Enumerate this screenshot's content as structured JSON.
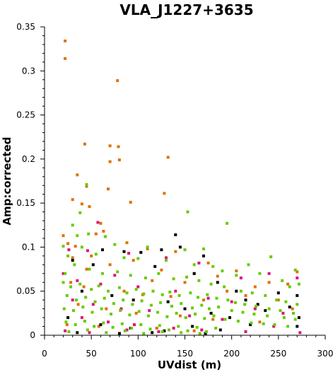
{
  "chart_data": {
    "type": "scatter",
    "title": "VLA_J1227+3635",
    "xlabel": "UVdist (m)",
    "ylabel": "Amp:corrected",
    "xlim": [
      0,
      300
    ],
    "ylim": [
      0,
      0.35
    ],
    "xticks": [
      0,
      50,
      100,
      150,
      200,
      250,
      300
    ],
    "yticks": [
      0,
      0.05,
      0.1,
      0.15,
      0.2,
      0.25,
      0.3,
      0.35
    ],
    "xtick_labels": [
      "0",
      "50",
      "100",
      "150",
      "200",
      "250",
      "300"
    ],
    "ytick_labels": [
      "0",
      "0.05",
      "0.1",
      "0.15",
      "0.2",
      "0.25",
      "0.3",
      "0.35"
    ],
    "grid": false,
    "legend": "none",
    "series": [
      {
        "color": "#e07000",
        "points": [
          [
            22,
            0.334
          ],
          [
            22,
            0.314
          ],
          [
            78,
            0.289
          ],
          [
            43,
            0.217
          ],
          [
            70,
            0.215
          ],
          [
            79,
            0.214
          ],
          [
            70,
            0.197
          ],
          [
            80,
            0.199
          ],
          [
            132,
            0.202
          ],
          [
            35,
            0.182
          ],
          [
            45,
            0.169
          ],
          [
            68,
            0.166
          ],
          [
            128,
            0.161
          ],
          [
            30,
            0.154
          ],
          [
            40,
            0.149
          ],
          [
            92,
            0.151
          ],
          [
            48,
            0.146
          ],
          [
            60,
            0.127
          ],
          [
            20,
            0.113
          ],
          [
            25,
            0.104
          ],
          [
            33,
            0.101
          ],
          [
            55,
            0.115
          ],
          [
            63,
            0.118
          ],
          [
            88,
            0.105
          ],
          [
            110,
            0.098
          ],
          [
            140,
            0.095
          ],
          [
            175,
            0.082
          ],
          [
            240,
            0.06
          ],
          [
            270,
            0.072
          ],
          [
            205,
            0.073
          ],
          [
            30,
            0.088
          ],
          [
            50,
            0.09
          ],
          [
            95,
            0.085
          ],
          [
            125,
            0.074
          ],
          [
            160,
            0.07
          ],
          [
            185,
            0.067
          ],
          [
            225,
            0.055
          ],
          [
            260,
            0.058
          ],
          [
            45,
            0.075
          ],
          [
            70,
            0.08
          ],
          [
            115,
            0.062
          ],
          [
            150,
            0.06
          ],
          [
            195,
            0.05
          ],
          [
            215,
            0.045
          ],
          [
            250,
            0.04
          ],
          [
            28,
            0.06
          ],
          [
            42,
            0.055
          ],
          [
            85,
            0.05
          ],
          [
            105,
            0.046
          ],
          [
            135,
            0.044
          ],
          [
            170,
            0.04
          ],
          [
            265,
            0.03
          ],
          [
            36,
            0.035
          ],
          [
            66,
            0.03
          ],
          [
            98,
            0.025
          ],
          [
            145,
            0.022
          ],
          [
            180,
            0.018
          ],
          [
            230,
            0.015
          ],
          [
            24,
            0.012
          ],
          [
            58,
            0.01
          ],
          [
            120,
            0.008
          ],
          [
            160,
            0.005
          ]
        ]
      },
      {
        "color": "#e0107a",
        "points": [
          [
            57,
            0.128
          ],
          [
            26,
            0.097
          ],
          [
            46,
            0.096
          ],
          [
            90,
            0.093
          ],
          [
            130,
            0.088
          ],
          [
            165,
            0.082
          ],
          [
            210,
            0.065
          ],
          [
            240,
            0.07
          ],
          [
            270,
            0.065
          ],
          [
            20,
            0.07
          ],
          [
            35,
            0.062
          ],
          [
            60,
            0.058
          ],
          [
            75,
            0.068
          ],
          [
            100,
            0.055
          ],
          [
            140,
            0.05
          ],
          [
            175,
            0.042
          ],
          [
            200,
            0.038
          ],
          [
            225,
            0.03
          ],
          [
            255,
            0.025
          ],
          [
            273,
            0.003
          ],
          [
            30,
            0.04
          ],
          [
            52,
            0.035
          ],
          [
            82,
            0.03
          ],
          [
            112,
            0.028
          ],
          [
            155,
            0.022
          ],
          [
            190,
            0.018
          ],
          [
            245,
            0.01
          ],
          [
            40,
            0.02
          ],
          [
            68,
            0.015
          ],
          [
            96,
            0.012
          ],
          [
            138,
            0.008
          ],
          [
            168,
            0.006
          ],
          [
            215,
            0.004
          ],
          [
            22,
            0.005
          ],
          [
            48,
            0.003
          ],
          [
            88,
            0.006
          ],
          [
            122,
            0.004
          ]
        ]
      },
      {
        "color": "#000000",
        "points": [
          [
            62,
            0.097
          ],
          [
            85,
            0.095
          ],
          [
            125,
            0.097
          ],
          [
            140,
            0.114
          ],
          [
            145,
            0.1
          ],
          [
            170,
            0.09
          ],
          [
            103,
            0.094
          ],
          [
            30,
            0.085
          ],
          [
            52,
            0.08
          ],
          [
            118,
            0.078
          ],
          [
            160,
            0.07
          ],
          [
            205,
            0.05
          ],
          [
            215,
            0.04
          ],
          [
            228,
            0.035
          ],
          [
            270,
            0.045
          ],
          [
            250,
            0.048
          ],
          [
            185,
            0.06
          ],
          [
            40,
            0.05
          ],
          [
            72,
            0.045
          ],
          [
            95,
            0.04
          ],
          [
            132,
            0.038
          ],
          [
            150,
            0.03
          ],
          [
            178,
            0.025
          ],
          [
            198,
            0.02
          ],
          [
            236,
            0.028
          ],
          [
            262,
            0.032
          ],
          [
            272,
            0.02
          ],
          [
            25,
            0.02
          ],
          [
            60,
            0.012
          ],
          [
            92,
            0.008
          ],
          [
            128,
            0.005
          ],
          [
            158,
            0.01
          ],
          [
            188,
            0.006
          ],
          [
            220,
            0.012
          ],
          [
            270,
            0.01
          ],
          [
            35,
            0.003
          ],
          [
            80,
            0.002
          ],
          [
            115,
            0.003
          ],
          [
            172,
            0.002
          ]
        ]
      },
      {
        "color": "#66cc00",
        "points": [
          [
            45,
            0.171
          ],
          [
            38,
            0.139
          ],
          [
            153,
            0.14
          ],
          [
            195,
            0.127
          ],
          [
            30,
            0.125
          ],
          [
            47,
            0.115
          ],
          [
            35,
            0.113
          ],
          [
            65,
            0.112
          ],
          [
            20,
            0.101
          ],
          [
            40,
            0.1
          ],
          [
            75,
            0.103
          ],
          [
            110,
            0.1
          ],
          [
            150,
            0.097
          ],
          [
            170,
            0.098
          ],
          [
            242,
            0.089
          ],
          [
            268,
            0.074
          ],
          [
            272,
            0.058
          ],
          [
            218,
            0.08
          ],
          [
            230,
            0.07
          ],
          [
            190,
            0.073
          ],
          [
            205,
            0.068
          ],
          [
            254,
            0.062
          ],
          [
            262,
            0.055
          ],
          [
            25,
            0.09
          ],
          [
            55,
            0.092
          ],
          [
            85,
            0.088
          ],
          [
            100,
            0.087
          ],
          [
            130,
            0.085
          ],
          [
            160,
            0.08
          ],
          [
            180,
            0.078
          ],
          [
            22,
            0.07
          ],
          [
            32,
            0.08
          ],
          [
            48,
            0.075
          ],
          [
            62,
            0.07
          ],
          [
            78,
            0.072
          ],
          [
            92,
            0.068
          ],
          [
            108,
            0.065
          ],
          [
            122,
            0.07
          ],
          [
            138,
            0.064
          ],
          [
            152,
            0.066
          ],
          [
            165,
            0.062
          ],
          [
            178,
            0.058
          ],
          [
            192,
            0.055
          ],
          [
            210,
            0.05
          ],
          [
            222,
            0.048
          ],
          [
            236,
            0.045
          ],
          [
            248,
            0.04
          ],
          [
            258,
            0.038
          ],
          [
            270,
            0.035
          ],
          [
            20,
            0.06
          ],
          [
            28,
            0.055
          ],
          [
            38,
            0.058
          ],
          [
            50,
            0.052
          ],
          [
            58,
            0.056
          ],
          [
            68,
            0.05
          ],
          [
            80,
            0.054
          ],
          [
            88,
            0.048
          ],
          [
            98,
            0.052
          ],
          [
            106,
            0.047
          ],
          [
            116,
            0.05
          ],
          [
            126,
            0.046
          ],
          [
            134,
            0.049
          ],
          [
            144,
            0.045
          ],
          [
            156,
            0.048
          ],
          [
            164,
            0.043
          ],
          [
            174,
            0.046
          ],
          [
            184,
            0.042
          ],
          [
            196,
            0.04
          ],
          [
            204,
            0.037
          ],
          [
            214,
            0.035
          ],
          [
            226,
            0.033
          ],
          [
            240,
            0.03
          ],
          [
            252,
            0.028
          ],
          [
            266,
            0.025
          ],
          [
            24,
            0.045
          ],
          [
            34,
            0.04
          ],
          [
            44,
            0.043
          ],
          [
            54,
            0.038
          ],
          [
            64,
            0.042
          ],
          [
            74,
            0.036
          ],
          [
            84,
            0.04
          ],
          [
            94,
            0.035
          ],
          [
            104,
            0.039
          ],
          [
            114,
            0.034
          ],
          [
            124,
            0.037
          ],
          [
            136,
            0.033
          ],
          [
            146,
            0.036
          ],
          [
            158,
            0.031
          ],
          [
            168,
            0.034
          ],
          [
            176,
            0.03
          ],
          [
            186,
            0.032
          ],
          [
            200,
            0.028
          ],
          [
            212,
            0.026
          ],
          [
            224,
            0.024
          ],
          [
            238,
            0.022
          ],
          [
            256,
            0.02
          ],
          [
            268,
            0.018
          ],
          [
            21,
            0.03
          ],
          [
            31,
            0.028
          ],
          [
            41,
            0.032
          ],
          [
            51,
            0.026
          ],
          [
            61,
            0.03
          ],
          [
            71,
            0.024
          ],
          [
            81,
            0.028
          ],
          [
            91,
            0.023
          ],
          [
            101,
            0.027
          ],
          [
            111,
            0.022
          ],
          [
            121,
            0.026
          ],
          [
            131,
            0.021
          ],
          [
            141,
            0.025
          ],
          [
            151,
            0.02
          ],
          [
            161,
            0.024
          ],
          [
            171,
            0.019
          ],
          [
            181,
            0.022
          ],
          [
            193,
            0.018
          ],
          [
            207,
            0.016
          ],
          [
            221,
            0.014
          ],
          [
            234,
            0.013
          ],
          [
            246,
            0.012
          ],
          [
            260,
            0.01
          ],
          [
            23,
            0.015
          ],
          [
            33,
            0.012
          ],
          [
            43,
            0.016
          ],
          [
            53,
            0.01
          ],
          [
            63,
            0.014
          ],
          [
            73,
            0.009
          ],
          [
            83,
            0.013
          ],
          [
            93,
            0.008
          ],
          [
            103,
            0.012
          ],
          [
            113,
            0.007
          ],
          [
            123,
            0.011
          ],
          [
            133,
            0.006
          ],
          [
            143,
            0.01
          ],
          [
            153,
            0.005
          ],
          [
            163,
            0.009
          ],
          [
            173,
            0.004
          ],
          [
            183,
            0.008
          ],
          [
            26,
            0.004
          ],
          [
            46,
            0.006
          ],
          [
            66,
            0.003
          ],
          [
            86,
            0.005
          ],
          [
            106,
            0.002
          ],
          [
            126,
            0.004
          ],
          [
            146,
            0.003
          ],
          [
            166,
            0.002
          ]
        ]
      }
    ]
  }
}
